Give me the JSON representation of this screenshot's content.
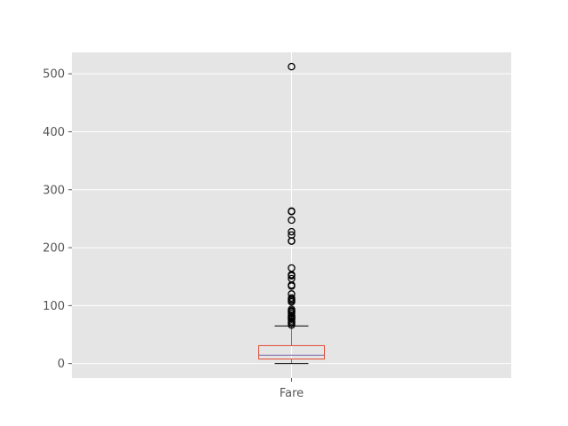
{
  "chart_data": {
    "type": "box",
    "style": "ggplot",
    "categories": [
      "Fare"
    ],
    "ylim": [
      -25,
      537
    ],
    "yticks": [
      0,
      100,
      200,
      300,
      400,
      500
    ],
    "grid": true,
    "legend": "none",
    "box": {
      "lower_whisker": 0,
      "q1": 7.9,
      "median": 14.45,
      "q3": 31.0,
      "upper_whisker": 65.0,
      "outliers": [
        66.6,
        69.55,
        71.0,
        73.5,
        76.7,
        77.3,
        78.85,
        79.65,
        80.0,
        82.17,
        83.16,
        86.5,
        89.1,
        90.0,
        91.08,
        93.5,
        106.43,
        108.9,
        110.88,
        113.28,
        120.0,
        133.65,
        135.63,
        146.52,
        151.55,
        153.46,
        164.87,
        211.34,
        211.5,
        221.78,
        227.52,
        247.52,
        262.38,
        263.0,
        512.33
      ]
    },
    "colors": {
      "background": "#e5e5e5",
      "grid": "#ffffff",
      "box": "#e24a33",
      "median": "#8eba42",
      "whisker": "#000000",
      "outlier": "#000000",
      "tick_text": "#555555"
    }
  }
}
